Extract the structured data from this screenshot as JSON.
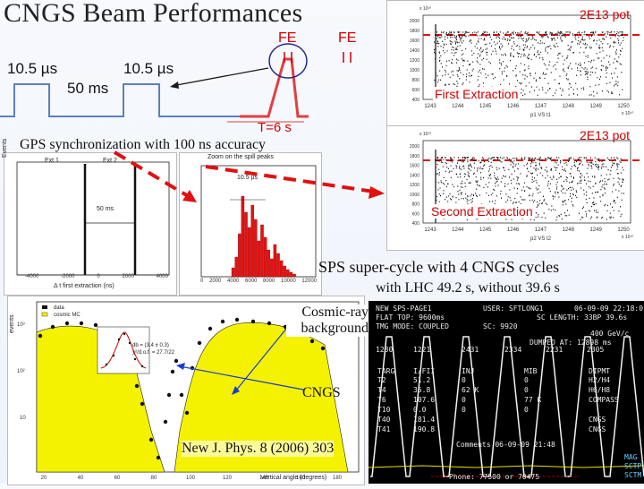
{
  "slide": {
    "title": "CNGS Beam Performances",
    "pulse_left_label": "10.5 µs",
    "pulse_gap_label": "50 ms",
    "pulse_right_label": "10.5 µs",
    "fe_label_1": "FE",
    "fe_label_2": "FE",
    "cycle_label": "T=6 s",
    "gps_caption": "GPS synchronization with 100 ns accuracy",
    "sps_caption": "SPS super-cycle with 4 CNGS cycles",
    "lhc_caption": "with LHC 49.2 s, without 39.6 s",
    "cosmic_label": "Cosmic-ray background",
    "cngs_label": "CNGS",
    "reference": "New J. Phys. 8 (2006) 303"
  },
  "extraction_plots": {
    "top": {
      "intensity_label": "2E13 pot",
      "name": "First Extraction",
      "x_ticks": [
        "1243",
        "1244",
        "1245",
        "1246",
        "1247",
        "1248",
        "1249",
        "1250"
      ],
      "x_exp": "x 10¹⁰",
      "y_exp": "x 10¹⁰",
      "x_title": "p1 VS t1",
      "y_ticks": [
        "2000",
        "1800",
        "1600",
        "1400",
        "1200",
        "1000",
        "800",
        "600",
        "400"
      ]
    },
    "bottom": {
      "intensity_label": "2E13 pot",
      "name": "Second Extraction",
      "x_ticks": [
        "1243",
        "1244",
        "1245",
        "1246",
        "1247",
        "1248",
        "1249",
        "1250"
      ],
      "x_exp": "x 10¹⁰",
      "y_exp": "x 10¹⁰",
      "x_title": "p2 VS t2",
      "y_ticks": [
        "2000",
        "1800",
        "1600",
        "1400",
        "1200",
        "1000",
        "800",
        "600",
        "400"
      ]
    }
  },
  "gps_hist": {
    "legend_1": "Ext 1",
    "legend_2": "Ext 2",
    "spacing": "50 ms",
    "x_ticks": [
      "-4000",
      "-2000",
      "0",
      "2000",
      "4000"
    ],
    "x_title": "Δ t first extraction (ns)",
    "y_title": "Events"
  },
  "zoom_hist": {
    "title": "Zoom on the spill peaks",
    "width": "10.5 µs",
    "x_ticks": [
      "0",
      "2000",
      "4000",
      "6000",
      "8000",
      "10000",
      "12000"
    ]
  },
  "angle_plot": {
    "legend_data": "data",
    "legend_mc": "cosmic MC",
    "fit_line_1": "db = (3.4 ± 0.3)",
    "fit_line_2": "χ²/d.o.f. = 27.7/22",
    "x_title": "vertical angle (degrees)",
    "y_title": "events",
    "y_ticks": [
      "10³",
      "10²",
      "10"
    ],
    "x_ticks": [
      "20",
      "40",
      "60",
      "80",
      "100",
      "120",
      "140",
      "160",
      "180"
    ]
  },
  "sps_screen": {
    "title": "NEW SPS-PAGE1",
    "user": "USER: SFTLONG1",
    "date": "06-09-09 22:18:01",
    "flat_top": "FLAT TOP: 9600ms",
    "sc_len": "SC LENGTH: 33BP 39.6s",
    "tmg": "TMG MODE: COUPLED",
    "sc": "SC: 9920",
    "gev": "400 GeV/c",
    "dumped": "DUMPED AT: 12898 ms",
    "cols": [
      "TARG",
      "I/FII",
      "INJ",
      "MIB",
      "DIPMT"
    ],
    "rows": [
      [
        "T2",
        "51.2",
        "0",
        "0",
        "H2/H4"
      ],
      [
        "T4",
        "35.8",
        "62 K",
        "0",
        "H6/H8"
      ],
      [
        "T6",
        "107.6",
        "0",
        "77 K",
        "COMPASS"
      ],
      [
        "T10",
        "0.0",
        "0",
        "0",
        ""
      ],
      [
        "T40",
        "181.4",
        "",
        "",
        "CNGS"
      ],
      [
        "T41",
        "190.8",
        "",
        "",
        "CNGS"
      ]
    ],
    "row_top": [
      "1280",
      "1221",
      "2431",
      "2334",
      "2231",
      "2305"
    ],
    "comments": "Comments 06-09-09 21:48",
    "phone": "Phone: 77500 or 70475",
    "side_tags": [
      "MAG",
      "SCTP",
      "SCTM"
    ]
  },
  "colors": {
    "red": "#d40000",
    "yellow": "#f4f200",
    "accent_blue": "#1a3bd1"
  }
}
